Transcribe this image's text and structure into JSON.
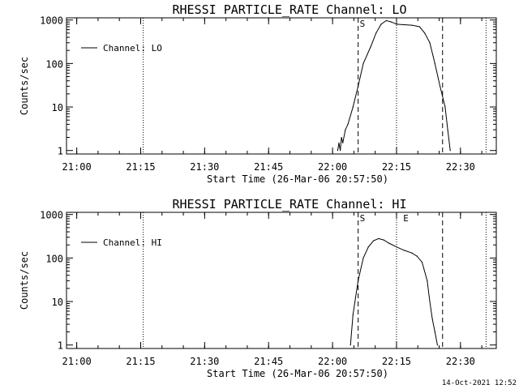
{
  "timestamp": "14-Oct-2021 12:52",
  "chart_data": [
    {
      "type": "line",
      "title": "RHESSI PARTICLE_RATE Channel: LO",
      "xlabel": "Start Time (26-Mar-06 20:57:50)",
      "ylabel": "Counts/sec",
      "yscale": "log",
      "ylim": [
        1,
        1000
      ],
      "xlim_minutes": [
        20.96,
        22.64
      ],
      "xtick_labels": [
        "21:00",
        "21:15",
        "21:30",
        "21:45",
        "22:00",
        "22:15",
        "22:30"
      ],
      "xtick_values": [
        21.0,
        21.25,
        21.5,
        21.75,
        22.0,
        22.25,
        22.5
      ],
      "ytick_labels": [
        "1",
        "10",
        "100",
        "1000"
      ],
      "ytick_values": [
        1,
        10,
        100,
        1000
      ],
      "legend": {
        "position": "top-left",
        "entries": [
          "Channel: LO"
        ]
      },
      "series": [
        {
          "name": "Channel: LO",
          "x": [
            22.02,
            22.025,
            22.03,
            22.035,
            22.04,
            22.05,
            22.06,
            22.08,
            22.1,
            22.12,
            22.15,
            22.17,
            22.19,
            22.21,
            22.23,
            22.25,
            22.28,
            22.31,
            22.34,
            22.36,
            22.38,
            22.4,
            22.42,
            22.44,
            22.45,
            22.46
          ],
          "y": [
            1,
            1.5,
            1,
            2,
            1.5,
            3,
            4,
            10,
            30,
            100,
            250,
            500,
            800,
            970,
            900,
            800,
            780,
            760,
            700,
            500,
            300,
            100,
            30,
            10,
            3,
            1
          ]
        }
      ],
      "vlines_dashed": [
        22.1,
        22.43
      ],
      "vlines_dotted": [
        21.26,
        22.25,
        22.6
      ],
      "markers": [
        {
          "label": "S",
          "x": 22.1
        }
      ]
    },
    {
      "type": "line",
      "title": "RHESSI PARTICLE_RATE Channel: HI",
      "xlabel": "Start Time (26-Mar-06 20:57:50)",
      "ylabel": "Counts/sec",
      "yscale": "log",
      "ylim": [
        1,
        1000
      ],
      "xlim_minutes": [
        20.96,
        22.64
      ],
      "xtick_labels": [
        "21:00",
        "21:15",
        "21:30",
        "21:45",
        "22:00",
        "22:15",
        "22:30"
      ],
      "xtick_values": [
        21.0,
        21.25,
        21.5,
        21.75,
        22.0,
        22.25,
        22.5
      ],
      "ytick_labels": [
        "1",
        "10",
        "100",
        "1000"
      ],
      "ytick_values": [
        1,
        10,
        100,
        1000
      ],
      "legend": {
        "position": "top-left",
        "entries": [
          "Channel: HI"
        ]
      },
      "series": [
        {
          "name": "Channel: HI",
          "x": [
            22.07,
            22.08,
            22.1,
            22.12,
            22.14,
            22.16,
            22.18,
            22.2,
            22.22,
            22.25,
            22.28,
            22.31,
            22.33,
            22.35,
            22.37,
            22.38,
            22.39,
            22.4,
            22.41
          ],
          "y": [
            1,
            5,
            30,
            100,
            180,
            250,
            280,
            260,
            220,
            180,
            150,
            130,
            110,
            80,
            30,
            10,
            4,
            2,
            1
          ]
        }
      ],
      "vlines_dashed": [
        22.1,
        22.43
      ],
      "vlines_dotted": [
        21.26,
        22.25,
        22.6
      ],
      "markers": [
        {
          "label": "S",
          "x": 22.1
        },
        {
          "label": "E",
          "x": 22.27
        }
      ]
    }
  ]
}
